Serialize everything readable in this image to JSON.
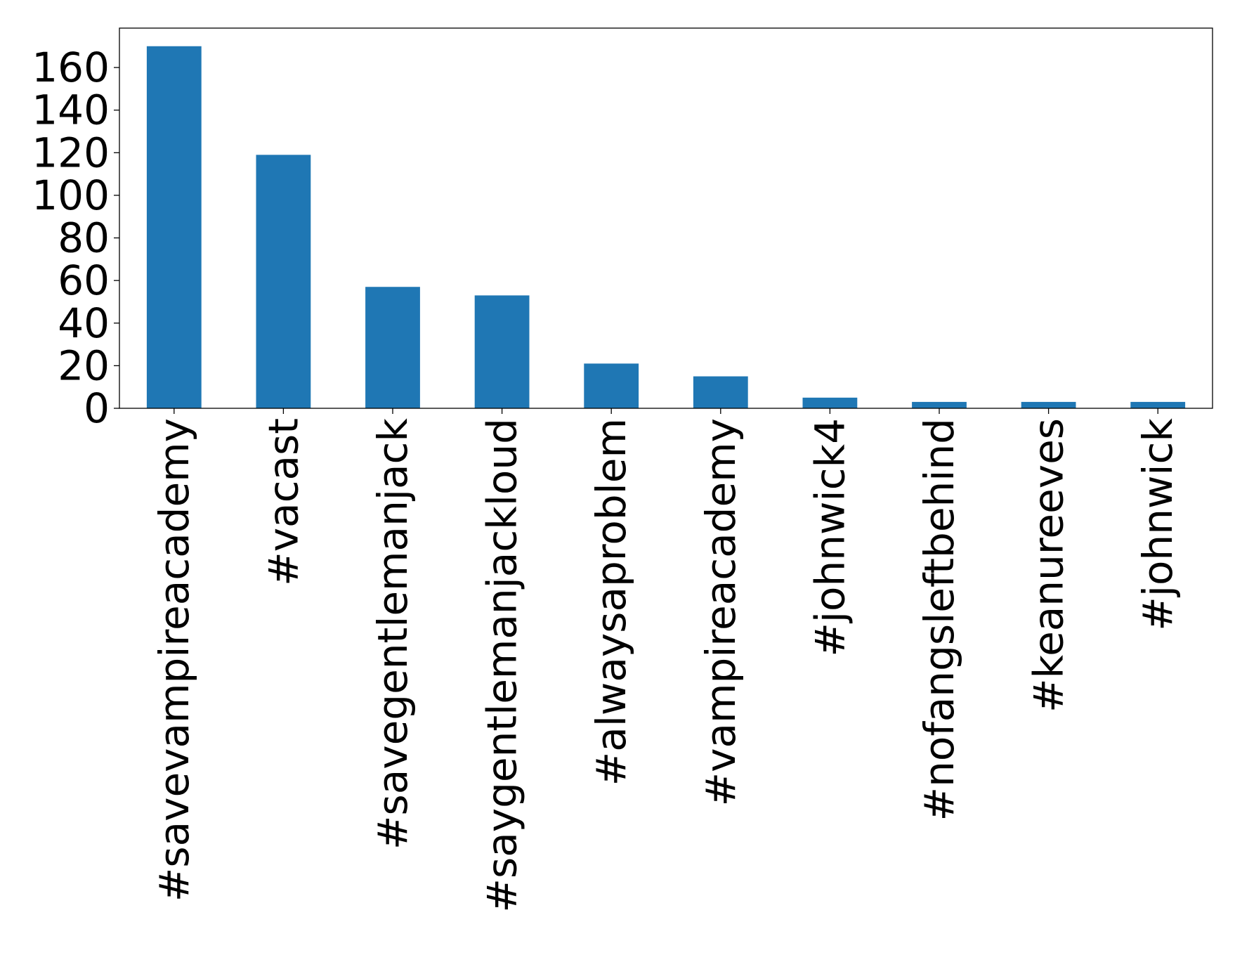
{
  "chart_data": {
    "type": "bar",
    "categories": [
      "#savevampireacademy",
      "#vacast",
      "#savegentlemanjack",
      "#saygentlemanjackloud",
      "#alwaysaproblem",
      "#vampireacademy",
      "#johnwick4",
      "#nofangsleftbehind",
      "#keanureeves",
      "#johnwick"
    ],
    "values": [
      170,
      119,
      57,
      53,
      21,
      15,
      5,
      3,
      3,
      3
    ],
    "title": "",
    "xlabel": "",
    "ylabel": "",
    "ylim": [
      0,
      178.5
    ],
    "yticks": [
      0,
      20,
      40,
      60,
      80,
      100,
      120,
      140,
      160
    ],
    "bar_color": "#1f77b4",
    "grid": false,
    "legend": "none"
  }
}
